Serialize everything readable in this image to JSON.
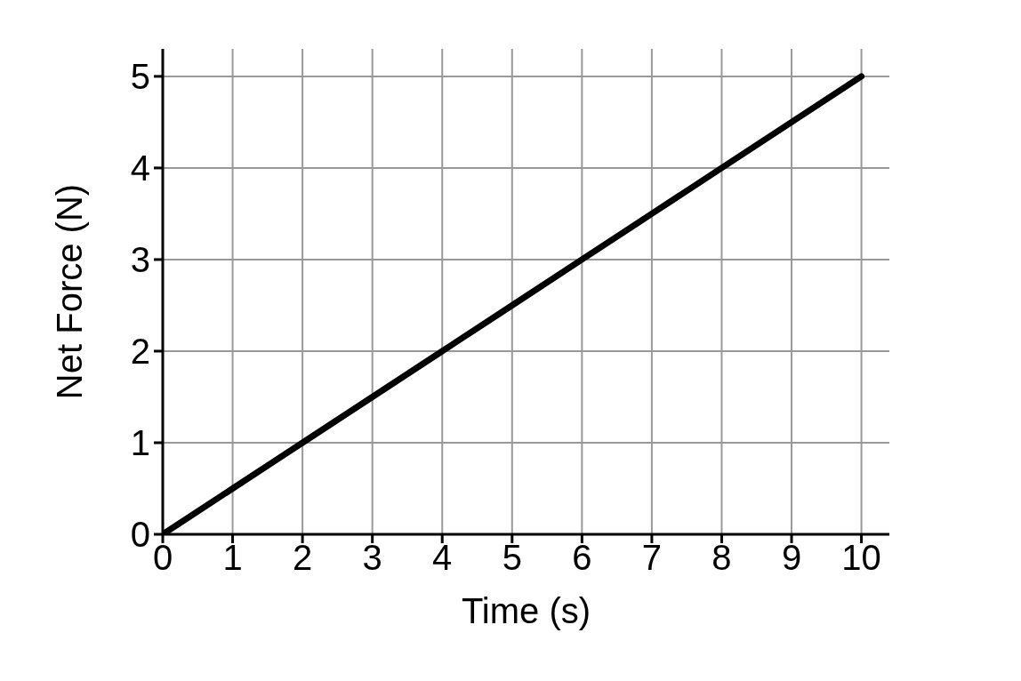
{
  "chart_data": {
    "type": "line",
    "xlabel": "Time (s)",
    "ylabel": "Net Force (N)",
    "x": [
      0,
      1,
      2,
      3,
      4,
      5,
      6,
      7,
      8,
      9,
      10
    ],
    "series": [
      {
        "color": "#000000",
        "values": [
          0,
          0.5,
          1,
          1.5,
          2,
          2.5,
          3,
          3.5,
          4,
          4.5,
          5
        ]
      }
    ],
    "xlim": [
      0,
      10.4
    ],
    "ylim": [
      0,
      5.3
    ],
    "xticks": [
      0,
      1,
      2,
      3,
      4,
      5,
      6,
      7,
      8,
      9,
      10
    ],
    "yticks": [
      0,
      1,
      2,
      3,
      4,
      5
    ],
    "grid": true,
    "marker": "none",
    "line_style": "solid",
    "legend": false
  }
}
